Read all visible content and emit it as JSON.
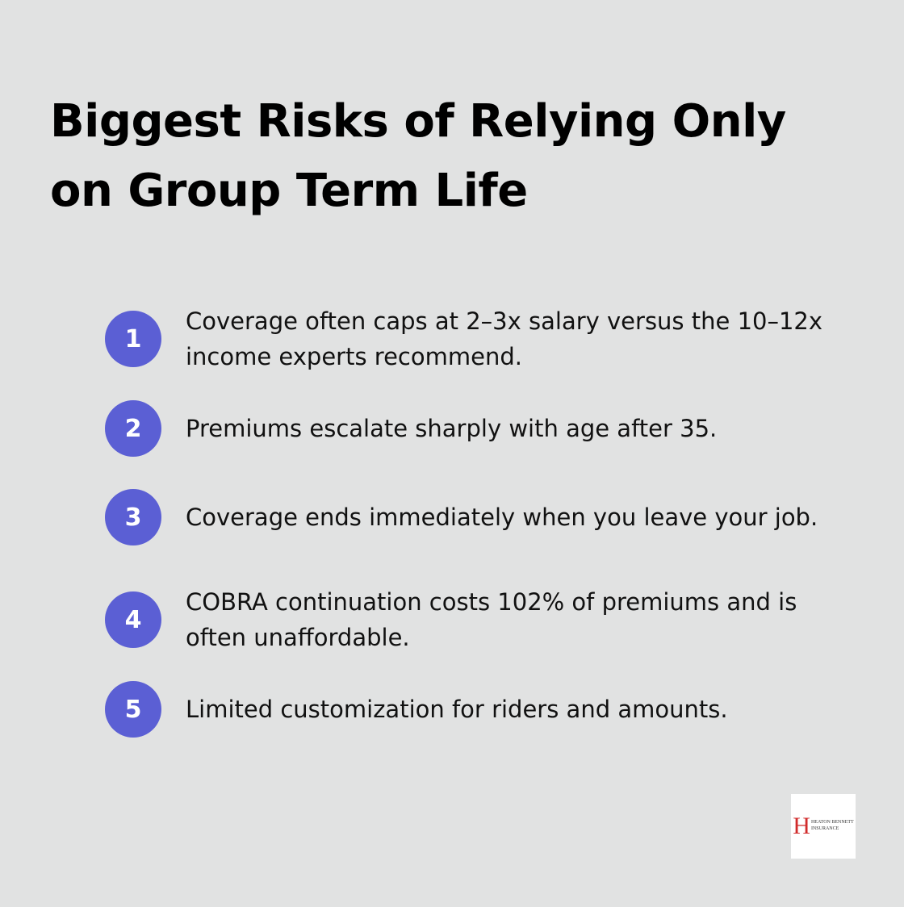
{
  "header": {
    "title": "Biggest Risks of Relying Only on Group Term Life"
  },
  "items": [
    {
      "number": "1",
      "text": "Coverage often caps at 2–3x salary versus the 10–12x income experts recommend."
    },
    {
      "number": "2",
      "text": "Premiums escalate sharply with age after 35."
    },
    {
      "number": "3",
      "text": "Coverage ends immediately when you leave your job."
    },
    {
      "number": "4",
      "text": "COBRA continuation costs 102% of premiums and is often unaffordable."
    },
    {
      "number": "5",
      "text": "Limited customization for riders and amounts."
    }
  ],
  "logo": {
    "letter": "H",
    "line1": "HEATON BENNETT",
    "line2": "INSURANCE"
  }
}
